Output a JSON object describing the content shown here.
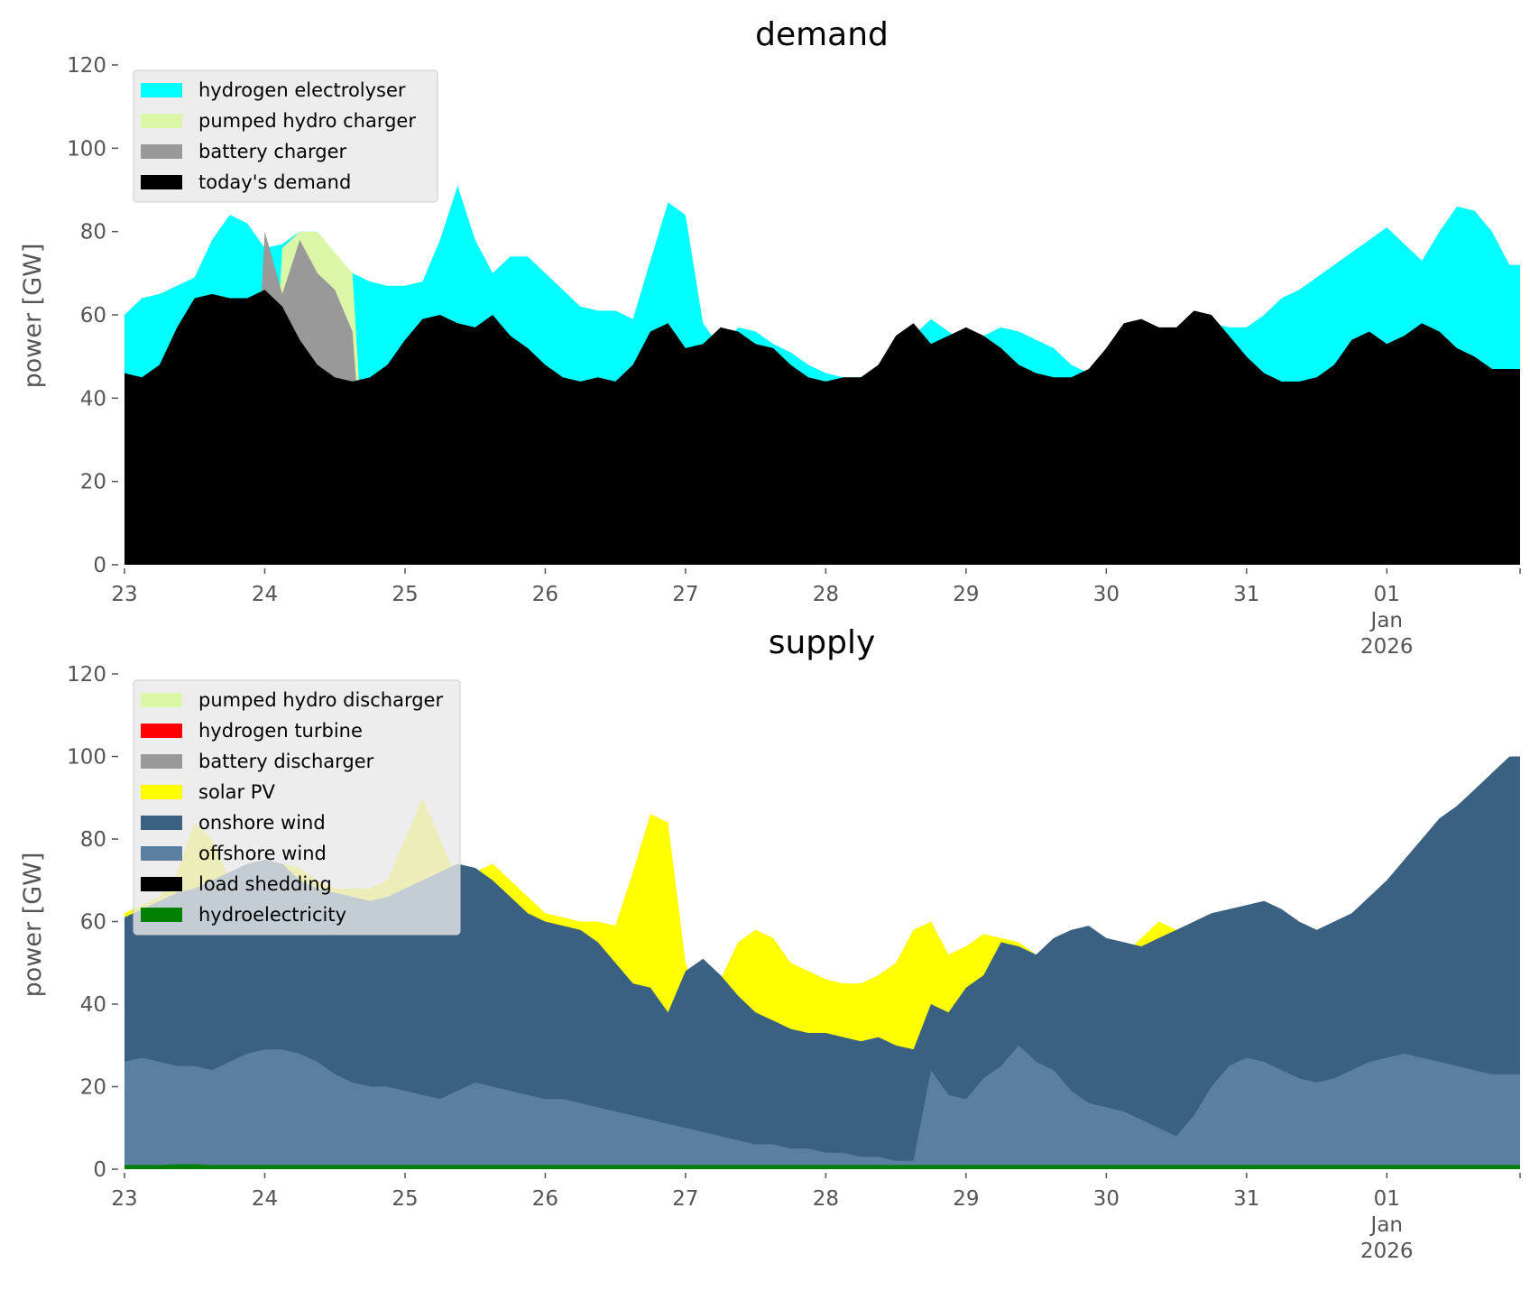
{
  "chart_data": [
    {
      "type": "area",
      "title": "demand",
      "xlabel": "",
      "ylabel": "power [GW]",
      "ylim": [
        0,
        120
      ],
      "yticks": [
        0,
        20,
        40,
        60,
        80,
        100,
        120
      ],
      "xlim_days": [
        0,
        9.95
      ],
      "xticks": [
        {
          "day": 0,
          "label": "23"
        },
        {
          "day": 1,
          "label": "24"
        },
        {
          "day": 2,
          "label": "25"
        },
        {
          "day": 3,
          "label": "26"
        },
        {
          "day": 4,
          "label": "27"
        },
        {
          "day": 5,
          "label": "28"
        },
        {
          "day": 6,
          "label": "29"
        },
        {
          "day": 7,
          "label": "30"
        },
        {
          "day": 8,
          "label": "31"
        },
        {
          "day": 9,
          "label": "01",
          "label2": "Jan",
          "label3": "2026"
        },
        {
          "day": 9.95,
          "label": ""
        }
      ],
      "grid": false,
      "legend_position": "top-left",
      "x_step_days": 0.125,
      "series": [
        {
          "name": "hydrogen electrolyser",
          "color": "#00ffff",
          "draw_order": 1,
          "values": [
            60,
            64,
            65,
            67,
            69,
            78,
            84,
            82,
            76,
            77,
            80,
            80,
            73,
            70,
            68,
            67,
            67,
            68,
            78,
            91,
            78,
            70,
            74,
            74,
            70,
            66,
            62,
            61,
            61,
            59,
            73,
            87,
            84,
            58,
            52,
            57,
            56,
            53,
            51,
            48,
            46,
            45,
            45,
            46,
            47,
            55,
            59,
            56,
            53,
            55,
            57,
            56,
            54,
            52,
            48,
            46,
            45,
            45,
            46,
            50,
            57,
            59,
            58,
            57,
            57,
            60,
            64,
            66,
            69,
            72,
            75,
            78,
            81,
            77,
            73,
            80,
            86,
            85,
            80,
            72
          ]
        },
        {
          "name": "pumped hydro charger",
          "color": "#d9f7a6",
          "draw_order": 2,
          "values": [
            0,
            0,
            0,
            0,
            0,
            0,
            0,
            0,
            0,
            76,
            80,
            80,
            75,
            70,
            0,
            0,
            0,
            0,
            0,
            0,
            0,
            0,
            0,
            0,
            0,
            0,
            0,
            0,
            0,
            0,
            0,
            0,
            0,
            0,
            0,
            0,
            0,
            0,
            0,
            0,
            0,
            0,
            0,
            0,
            0,
            0,
            0,
            0,
            0,
            0,
            0,
            0,
            0,
            0,
            0,
            0,
            0,
            0,
            0,
            0,
            0,
            0,
            0,
            0,
            0,
            0,
            0,
            0,
            0,
            0,
            0,
            0,
            0,
            0,
            0,
            0,
            0,
            0,
            0,
            0
          ]
        },
        {
          "name": "battery charger",
          "color": "#999999",
          "draw_order": 3,
          "values": [
            0,
            0,
            0,
            0,
            0,
            0,
            0,
            0,
            80,
            65,
            78,
            70,
            66,
            56,
            0,
            0,
            0,
            0,
            0,
            0,
            0,
            0,
            0,
            0,
            0,
            0,
            0,
            0,
            0,
            0,
            0,
            0,
            0,
            0,
            0,
            0,
            0,
            0,
            0,
            0,
            0,
            0,
            0,
            0,
            0,
            0,
            0,
            0,
            0,
            0,
            0,
            0,
            0,
            0,
            0,
            0,
            0,
            0,
            0,
            0,
            0,
            0,
            0,
            0,
            0,
            0,
            0,
            0,
            0,
            0,
            0,
            0,
            0,
            0,
            0,
            0,
            0,
            0,
            0,
            0
          ]
        },
        {
          "name": "today's demand",
          "color": "#000000",
          "draw_order": 4,
          "values": [
            46,
            45,
            48,
            57,
            64,
            65,
            64,
            64,
            66,
            62,
            54,
            48,
            45,
            44,
            45,
            48,
            54,
            59,
            60,
            58,
            57,
            60,
            55,
            52,
            48,
            45,
            44,
            45,
            44,
            48,
            56,
            58,
            52,
            53,
            57,
            56,
            53,
            52,
            48,
            45,
            44,
            45,
            45,
            48,
            55,
            58,
            53,
            55,
            57,
            55,
            52,
            48,
            46,
            45,
            45,
            47,
            52,
            58,
            59,
            57,
            57,
            61,
            60,
            55,
            50,
            46,
            44,
            44,
            45,
            48,
            54,
            56,
            53,
            55,
            58,
            56,
            52,
            50,
            47,
            47
          ]
        }
      ]
    },
    {
      "type": "area",
      "title": "supply",
      "xlabel": "",
      "ylabel": "power [GW]",
      "ylim": [
        0,
        120
      ],
      "yticks": [
        0,
        20,
        40,
        60,
        80,
        100,
        120
      ],
      "xlim_days": [
        0,
        9.95
      ],
      "xticks": [
        {
          "day": 0,
          "label": "23"
        },
        {
          "day": 1,
          "label": "24"
        },
        {
          "day": 2,
          "label": "25"
        },
        {
          "day": 3,
          "label": "26"
        },
        {
          "day": 4,
          "label": "27"
        },
        {
          "day": 5,
          "label": "28"
        },
        {
          "day": 6,
          "label": "29"
        },
        {
          "day": 7,
          "label": "30"
        },
        {
          "day": 8,
          "label": "31"
        },
        {
          "day": 9,
          "label": "01",
          "label2": "Jan",
          "label3": "2026"
        },
        {
          "day": 9.95,
          "label": ""
        }
      ],
      "grid": false,
      "legend_position": "top-left",
      "x_step_days": 0.125,
      "series": [
        {
          "name": "pumped hydro discharger",
          "color": "#d9f7a6",
          "draw_order": 1,
          "values": [
            0,
            0,
            0,
            0,
            0,
            0,
            0,
            0,
            0,
            0,
            0,
            0,
            0,
            0,
            0,
            0,
            0,
            0,
            0,
            0,
            0,
            0,
            0,
            0,
            0,
            0,
            0,
            0,
            0,
            0,
            0,
            0,
            0,
            0,
            0,
            0,
            0,
            0,
            0,
            0,
            0,
            0,
            0,
            0,
            0,
            0,
            0,
            0,
            0,
            0,
            0,
            0,
            0,
            0,
            0,
            0,
            0,
            0,
            0,
            0,
            0,
            0,
            0,
            0,
            0,
            0,
            0,
            0,
            0,
            0,
            0,
            0,
            0,
            0,
            0,
            0,
            0,
            0,
            0,
            0
          ]
        },
        {
          "name": "hydrogen turbine",
          "color": "#ff0000",
          "draw_order": 2,
          "values": [
            0,
            0,
            0,
            0,
            0,
            0,
            0,
            0,
            0,
            0,
            0,
            0,
            0,
            0,
            0,
            0,
            0,
            0,
            0,
            0,
            0,
            0,
            0,
            0,
            0,
            0,
            0,
            0,
            0,
            0,
            0,
            0,
            0,
            0,
            0,
            0,
            0,
            0,
            0,
            0,
            0,
            0,
            0,
            0,
            0,
            0,
            0,
            0,
            0,
            0,
            0,
            0,
            0,
            0,
            0,
            0,
            0,
            0,
            0,
            0,
            0,
            0,
            0,
            0,
            0,
            0,
            0,
            0,
            0,
            0,
            0,
            0,
            0,
            0,
            0,
            0,
            0,
            0,
            0,
            0
          ]
        },
        {
          "name": "battery discharger",
          "color": "#999999",
          "draw_order": 3,
          "values": [
            0,
            0,
            0,
            0,
            0,
            0,
            0,
            0,
            0,
            0,
            0,
            0,
            0,
            0,
            0,
            0,
            0,
            0,
            0,
            0,
            0,
            0,
            0,
            0,
            0,
            0,
            0,
            0,
            0,
            0,
            0,
            0,
            0,
            0,
            0,
            0,
            0,
            0,
            0,
            0,
            0,
            0,
            0,
            0,
            0,
            0,
            0,
            0,
            0,
            0,
            0,
            0,
            0,
            0,
            0,
            0,
            0,
            0,
            0,
            0,
            0,
            0,
            0,
            0,
            0,
            0,
            0,
            0,
            0,
            0,
            0,
            0,
            0,
            0,
            0,
            0,
            0,
            0,
            0,
            0
          ]
        },
        {
          "name": "solar PV",
          "color": "#ffff00",
          "draw_order": 4,
          "values": [
            62,
            64,
            66,
            72,
            84,
            80,
            70,
            70,
            72,
            74,
            73,
            70,
            68,
            68,
            68,
            70,
            80,
            90,
            80,
            70,
            72,
            74,
            70,
            66,
            62,
            61,
            60,
            60,
            59,
            72,
            86,
            84,
            50,
            40,
            46,
            55,
            58,
            56,
            50,
            48,
            46,
            45,
            45,
            47,
            50,
            58,
            60,
            52,
            54,
            57,
            56,
            55,
            52,
            47,
            44,
            44,
            46,
            52,
            56,
            60,
            58,
            55,
            52,
            50,
            48,
            47,
            45,
            46,
            49,
            58,
            62,
            60,
            57,
            59,
            62,
            66,
            70,
            72,
            78,
            84
          ]
        },
        {
          "name": "onshore wind",
          "color": "#3b6182",
          "draw_order": 5,
          "values": [
            61,
            63,
            65,
            67,
            68,
            70,
            72,
            74,
            75,
            74,
            70,
            68,
            67,
            66,
            65,
            66,
            68,
            70,
            72,
            74,
            73,
            70,
            66,
            62,
            60,
            59,
            58,
            55,
            50,
            45,
            44,
            38,
            48,
            51,
            47,
            42,
            38,
            36,
            34,
            33,
            33,
            32,
            31,
            32,
            30,
            29,
            40,
            38,
            44,
            47,
            55,
            54,
            52,
            56,
            58,
            59,
            56,
            55,
            54,
            56,
            58,
            60,
            62,
            63,
            64,
            65,
            63,
            60,
            58,
            60,
            62,
            66,
            70,
            75,
            80,
            85,
            88,
            92,
            96,
            100
          ]
        },
        {
          "name": "offshore wind",
          "color": "#5b7fa1",
          "draw_order": 6,
          "values": [
            26,
            27,
            26,
            25,
            25,
            24,
            26,
            28,
            29,
            29,
            28,
            26,
            23,
            21,
            20,
            20,
            19,
            18,
            17,
            19,
            21,
            20,
            19,
            18,
            17,
            17,
            16,
            15,
            14,
            13,
            12,
            11,
            10,
            9,
            8,
            7,
            6,
            6,
            5,
            5,
            4,
            4,
            3,
            3,
            2,
            2,
            24,
            18,
            17,
            22,
            25,
            30,
            26,
            24,
            19,
            16,
            15,
            14,
            12,
            10,
            8,
            13,
            20,
            25,
            27,
            26,
            24,
            22,
            21,
            22,
            24,
            26,
            27,
            28,
            27,
            26,
            25,
            24,
            23,
            23
          ]
        },
        {
          "name": "load shedding",
          "color": "#000000",
          "draw_order": 7,
          "values": [
            0,
            0,
            0,
            0,
            0,
            0,
            0,
            0,
            0,
            0,
            0,
            0,
            0,
            0,
            0,
            0,
            0,
            0,
            0,
            0,
            0,
            0,
            0,
            0,
            0,
            0,
            0,
            0,
            0,
            0,
            0,
            0,
            0,
            0,
            0,
            0,
            0,
            0,
            0,
            0,
            0,
            0,
            0,
            0,
            0,
            0,
            0,
            0,
            0,
            0,
            0,
            0,
            0,
            0,
            0,
            0,
            0,
            0,
            0,
            0,
            0,
            0,
            0,
            0,
            0,
            0,
            0,
            0,
            0,
            0,
            0,
            0,
            0,
            0,
            0,
            0,
            0,
            0,
            0,
            0
          ]
        },
        {
          "name": "hydroelectricity",
          "color": "#008000",
          "draw_order": 8,
          "values": [
            1,
            1,
            1,
            1.2,
            1.2,
            1,
            1,
            1,
            1,
            1,
            1,
            1,
            1,
            1,
            1,
            1,
            1,
            1,
            1,
            1,
            1,
            1,
            1,
            1,
            1,
            1,
            1,
            1,
            1,
            1,
            1,
            1,
            1,
            1,
            1,
            1,
            1,
            1,
            1,
            1,
            1,
            1,
            1,
            1,
            1,
            1,
            1,
            1,
            1,
            1,
            1,
            1,
            1,
            1,
            1,
            1,
            1,
            1,
            1,
            1,
            1,
            1,
            1,
            1,
            1,
            1,
            1,
            1,
            1,
            1,
            1,
            1,
            1,
            1,
            1,
            1,
            1,
            1,
            1,
            1
          ]
        }
      ]
    }
  ]
}
